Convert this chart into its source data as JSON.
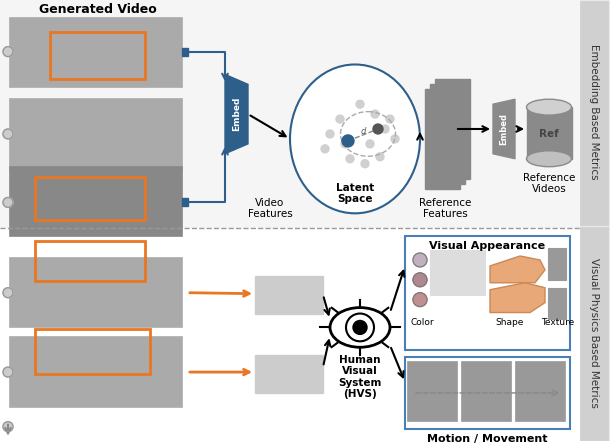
{
  "title": "Generated Video",
  "right_label_top": "Embedding Based Metrics",
  "right_label_bottom": "Visual Physics Based Metrics",
  "embed_label": "Embed",
  "ref_label": "Ref",
  "latent_space_label": "Latent\nSpace",
  "video_features_label": "Video\nFeatures",
  "ref_features_label": "Reference\nFeatures",
  "ref_videos_label": "Reference\nVideos",
  "hvs_label": "Human\nVisual\nSystem\n(HVS)",
  "visual_appearance_label": "Visual Appearance",
  "motion_label": "Motion / Movement",
  "color_label": "Color",
  "shape_label": "Shape",
  "texture_label": "Texture",
  "bg_color": "#ffffff",
  "blue_dark": "#2d5f8a",
  "blue_medium": "#4a7fb5",
  "orange_arrow": "#e87722",
  "gray_box": "#8a8a8a",
  "gray_light": "#c0c0c0",
  "gray_border": "#999999",
  "dashed_line_color": "#999999",
  "frame_border": "#bbbbbb"
}
